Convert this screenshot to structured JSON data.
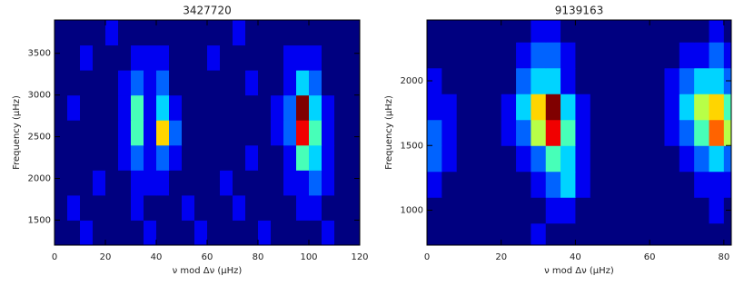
{
  "chart_data": [
    {
      "type": "heatmap",
      "title": "3427720",
      "xlabel": "ν mod Δν (μHz)",
      "ylabel": "Frequency (μHz)",
      "colormap": "jet",
      "xlim": [
        0,
        120
      ],
      "ylim": [
        1200,
        3900
      ],
      "xticks": [
        0,
        20,
        40,
        60,
        80,
        100,
        120
      ],
      "yticks": [
        1500,
        2000,
        2500,
        3000,
        3500
      ],
      "xbins": [
        0,
        5,
        10,
        15,
        20,
        25,
        30,
        35,
        40,
        45,
        50,
        55,
        60,
        65,
        70,
        75,
        80,
        85,
        90,
        95,
        100,
        105,
        110,
        115,
        120
      ],
      "ybins": [
        1200,
        1500,
        1800,
        2100,
        2400,
        2700,
        3000,
        3300,
        3600,
        3900
      ],
      "z": [
        [
          1,
          1,
          2,
          1,
          1,
          1,
          1,
          2,
          1,
          1,
          1,
          2,
          1,
          1,
          1,
          1,
          2,
          1,
          1,
          1,
          1,
          2,
          1,
          1
        ],
        [
          1,
          2,
          1,
          1,
          1,
          1,
          2,
          1,
          1,
          1,
          2,
          1,
          1,
          1,
          2,
          1,
          1,
          1,
          1,
          2,
          2,
          1,
          1,
          1
        ],
        [
          1,
          1,
          1,
          2,
          1,
          1,
          2,
          2,
          2,
          1,
          1,
          1,
          1,
          2,
          1,
          1,
          1,
          1,
          2,
          2,
          3,
          2,
          1,
          1
        ],
        [
          1,
          1,
          1,
          1,
          1,
          2,
          3,
          2,
          3,
          2,
          1,
          1,
          1,
          1,
          1,
          2,
          1,
          1,
          2,
          5,
          4,
          2,
          1,
          1
        ],
        [
          1,
          1,
          1,
          1,
          1,
          2,
          5,
          2,
          7,
          3,
          1,
          1,
          1,
          1,
          1,
          1,
          1,
          2,
          3,
          9,
          5,
          2,
          1,
          1
        ],
        [
          1,
          2,
          1,
          1,
          1,
          2,
          5,
          2,
          4,
          2,
          1,
          1,
          1,
          1,
          1,
          1,
          1,
          2,
          3,
          10,
          4,
          2,
          1,
          1
        ],
        [
          1,
          1,
          1,
          1,
          1,
          2,
          3,
          2,
          3,
          1,
          1,
          1,
          1,
          1,
          1,
          2,
          1,
          1,
          2,
          4,
          3,
          1,
          1,
          1
        ],
        [
          1,
          1,
          2,
          1,
          1,
          1,
          2,
          2,
          2,
          1,
          1,
          1,
          2,
          1,
          1,
          1,
          1,
          1,
          2,
          2,
          2,
          1,
          1,
          1
        ],
        [
          1,
          1,
          1,
          1,
          2,
          1,
          1,
          1,
          1,
          1,
          1,
          1,
          1,
          1,
          2,
          1,
          1,
          1,
          1,
          1,
          1,
          1,
          1,
          1
        ]
      ]
    },
    {
      "type": "heatmap",
      "title": "9139163",
      "xlabel": "ν mod Δν (μHz)",
      "ylabel": "Frequency (μHz)",
      "colormap": "jet",
      "xlim": [
        0,
        82
      ],
      "ylim": [
        730,
        2470
      ],
      "xticks": [
        0,
        20,
        40,
        60,
        80
      ],
      "yticks": [
        1000,
        1500,
        2000
      ],
      "xbins": [
        0,
        4,
        8,
        12,
        16,
        20,
        24,
        28,
        32,
        36,
        40,
        44,
        48,
        52,
        56,
        60,
        64,
        68,
        72,
        76,
        80,
        82
      ],
      "ybins": [
        730,
        900,
        1100,
        1300,
        1500,
        1700,
        1900,
        2100,
        2300,
        2470
      ],
      "z": [
        [
          1,
          1,
          1,
          1,
          1,
          1,
          1,
          2,
          1,
          1,
          1,
          1,
          1,
          1,
          1,
          1,
          1,
          1,
          1,
          1,
          1
        ],
        [
          1,
          1,
          1,
          1,
          1,
          1,
          1,
          1,
          2,
          2,
          1,
          1,
          1,
          1,
          1,
          1,
          1,
          1,
          1,
          2,
          1
        ],
        [
          2,
          1,
          1,
          1,
          1,
          1,
          1,
          2,
          3,
          4,
          2,
          1,
          1,
          1,
          1,
          1,
          1,
          1,
          2,
          2,
          2
        ],
        [
          3,
          2,
          1,
          1,
          1,
          1,
          2,
          3,
          5,
          4,
          2,
          1,
          1,
          1,
          1,
          1,
          1,
          2,
          3,
          4,
          3
        ],
        [
          3,
          2,
          1,
          1,
          1,
          2,
          3,
          6,
          9,
          5,
          2,
          1,
          1,
          1,
          1,
          1,
          2,
          3,
          5,
          8,
          6
        ],
        [
          2,
          2,
          1,
          1,
          1,
          2,
          4,
          7,
          10,
          4,
          2,
          1,
          1,
          1,
          1,
          1,
          2,
          4,
          6,
          7,
          5
        ],
        [
          2,
          1,
          1,
          1,
          1,
          1,
          3,
          4,
          4,
          2,
          1,
          1,
          1,
          1,
          1,
          1,
          2,
          3,
          4,
          4,
          3
        ],
        [
          1,
          1,
          1,
          1,
          1,
          1,
          2,
          3,
          3,
          2,
          1,
          1,
          1,
          1,
          1,
          1,
          1,
          2,
          2,
          3,
          2
        ],
        [
          1,
          1,
          1,
          1,
          1,
          1,
          1,
          2,
          2,
          1,
          1,
          1,
          1,
          1,
          1,
          1,
          1,
          1,
          1,
          2,
          1
        ]
      ]
    }
  ]
}
